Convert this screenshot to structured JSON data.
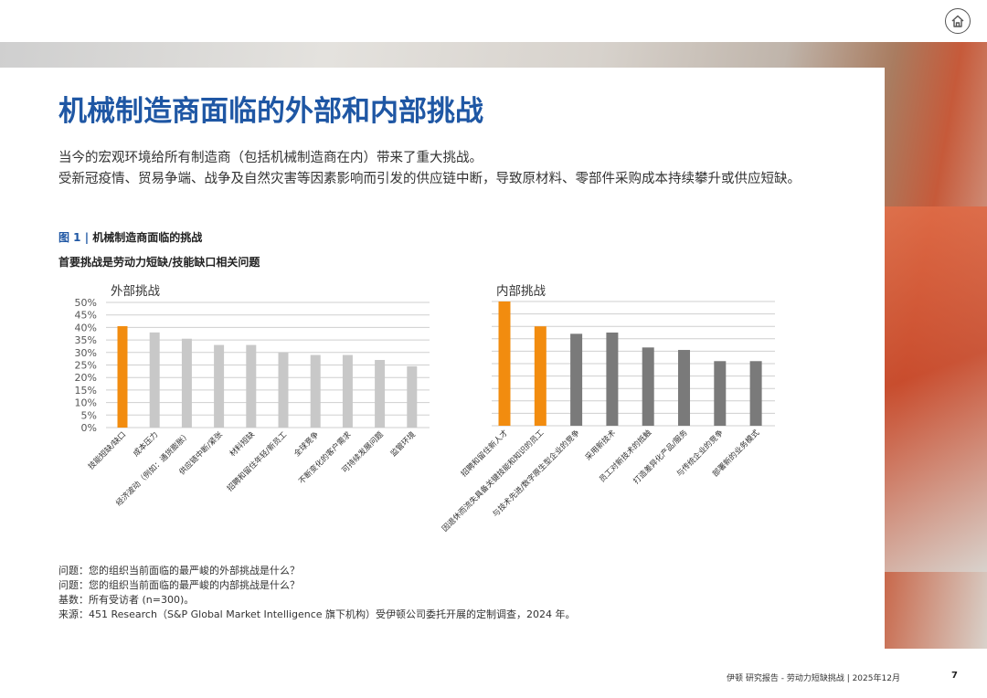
{
  "header": {
    "home_icon": "home-icon"
  },
  "title": "机械制造商面临的外部和内部挑战",
  "intro": [
    "当今的宏观环境给所有制造商（包括机械制造商在内）带来了重大挑战。",
    "受新冠疫情、贸易争端、战争及自然灾害等因素影响而引发的供应链中断，导致原材料、零部件采购成本持续攀升或供应短缺。"
  ],
  "figure": {
    "number": "图 1 |",
    "caption": " 机械制造商面临的挑战",
    "subtitle": "首要挑战是劳动力短缺/技能缺口相关问题"
  },
  "colors": {
    "title": "#1f57a4",
    "highlight": "#f28c0f",
    "external_bar": "#c8c8c8",
    "internal_bar": "#7a7a7a",
    "grid": "#cfcfcf"
  },
  "chart_data": [
    {
      "type": "bar",
      "title": "外部挑战",
      "categories": [
        "技能短缺/缺口",
        "成本压力",
        "经济波动（例如：通货膨胀）",
        "供应链中断/紧张",
        "材料短缺",
        "招聘和留住年轻/新员工",
        "全球竞争",
        "不断变化的客户需求",
        "可持续发展问题",
        "监管环境"
      ],
      "values": [
        40.5,
        38,
        35.5,
        33,
        33,
        30,
        29,
        29,
        27,
        24.5
      ],
      "highlight_count": 1,
      "ylim": [
        0,
        50
      ],
      "yticks": [
        "0%",
        "5%",
        "10%",
        "15%",
        "20%",
        "25%",
        "30%",
        "35%",
        "40%",
        "45%",
        "50%"
      ],
      "grid": true
    },
    {
      "type": "bar",
      "title": "内部挑战",
      "categories": [
        "招聘和留住新人才",
        "因退休而流失具备关键技能和知识的员工",
        "与技术先进/数字原生型企业的竞争",
        "采用新技术",
        "员工对新技术的抵触",
        "打造差异化产品/服务",
        "与传统企业的竞争",
        "部署新的业务模式"
      ],
      "values": [
        50,
        40,
        37,
        37.5,
        31.5,
        30.5,
        26,
        26
      ],
      "highlight_count": 2,
      "ylim": [
        0,
        50
      ],
      "grid": true
    }
  ],
  "notes": [
    "问题：您的组织当前面临的最严峻的外部挑战是什么？",
    "问题：您的组织当前面临的最严峻的内部挑战是什么？",
    "基数：所有受访者 (n=300)。",
    "来源：451 Research（S&P Global Market Intelligence 旗下机构）受伊顿公司委托开展的定制调查，2024 年。"
  ],
  "footer": {
    "text": "伊顿 研究报告 - 劳动力短缺挑战 | 2025年12月",
    "page": "7"
  }
}
